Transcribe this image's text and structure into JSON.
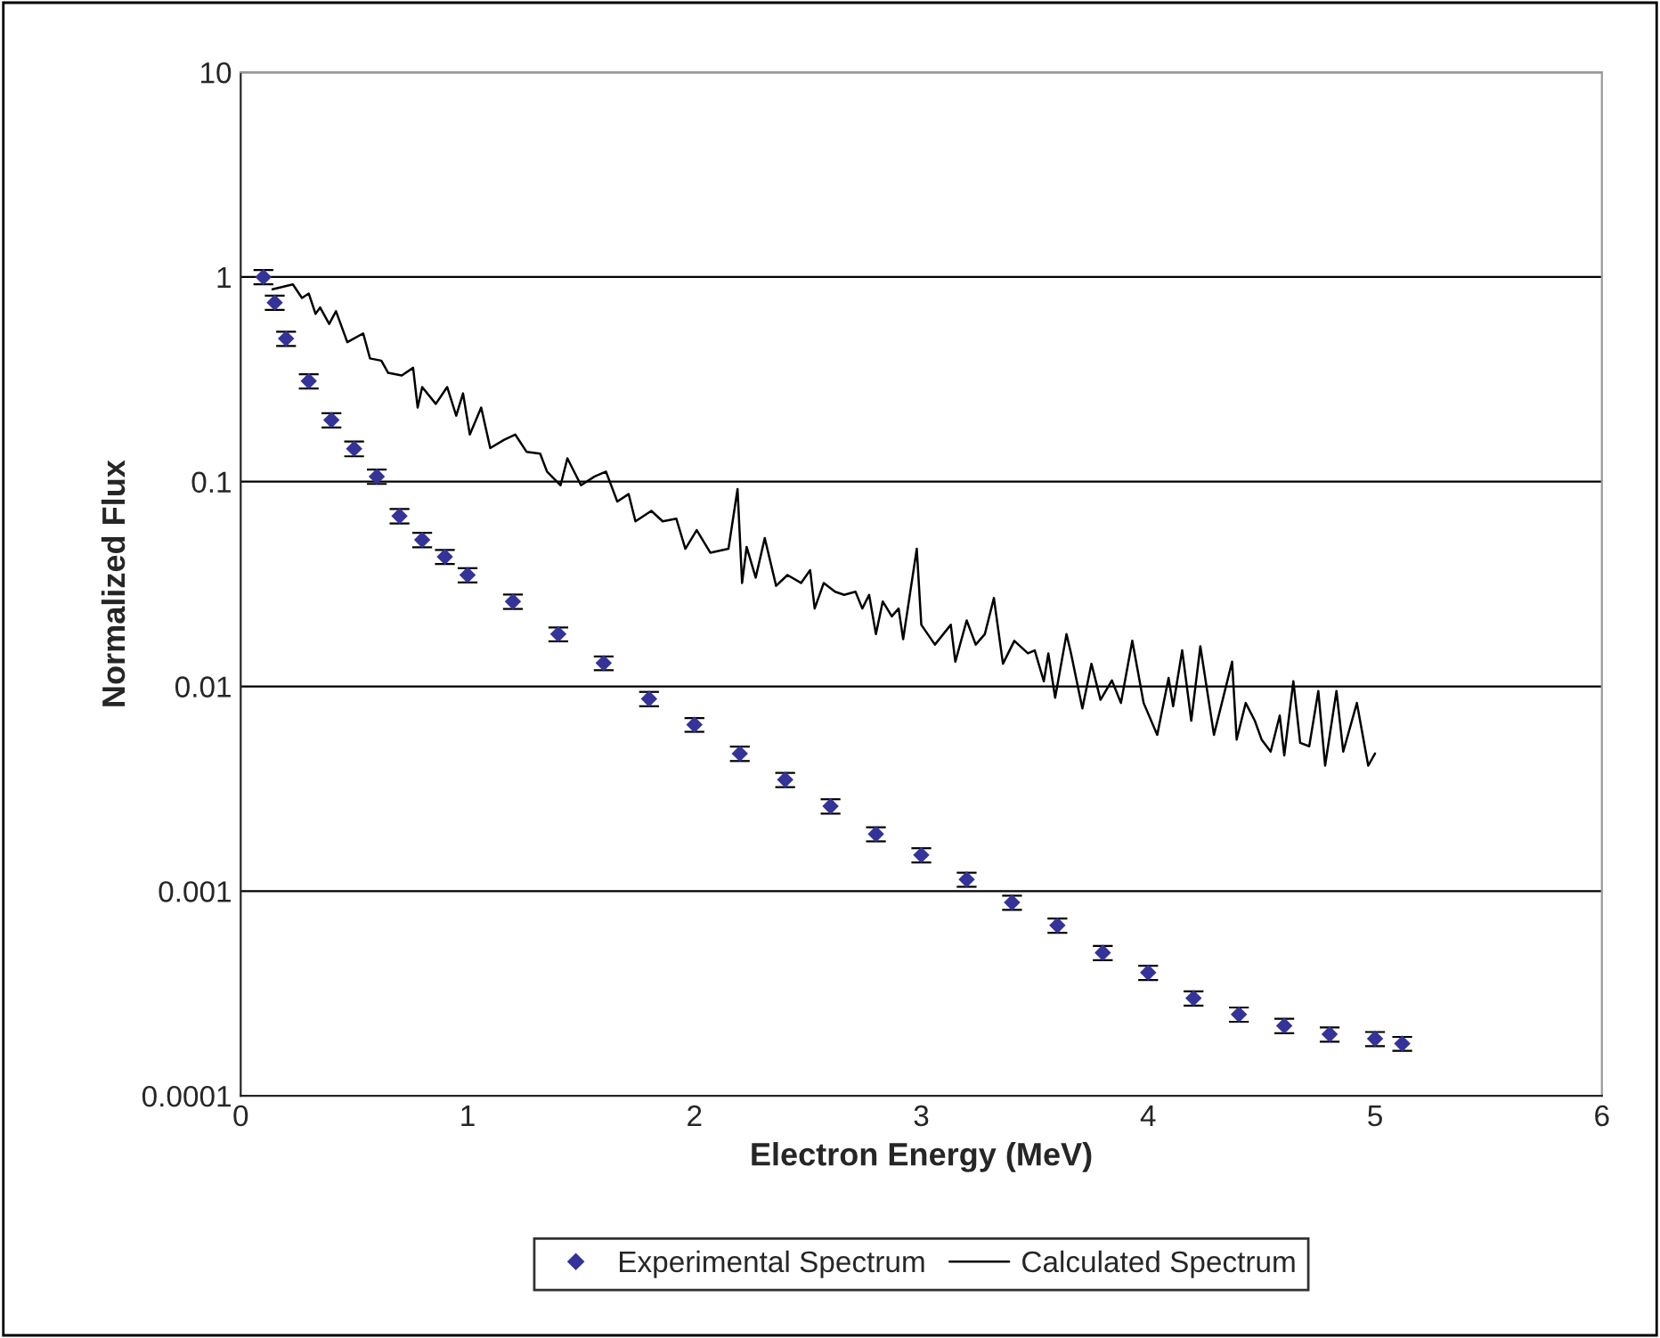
{
  "chart_data": {
    "type": "line",
    "xlabel": "Electron Energy (MeV)",
    "ylabel": "Normalized Flux",
    "log": "y",
    "xlim": [
      0,
      6
    ],
    "xticks": [
      0,
      1,
      2,
      3,
      4,
      5,
      6
    ],
    "ylim": [
      0.0001,
      10
    ],
    "yticks": [
      0.0001,
      0.001,
      0.01,
      0.1,
      1,
      10
    ],
    "grid": "y",
    "legend": "bottom",
    "series": [
      {
        "name": "Experimental Spectrum",
        "type": "scatter",
        "marker": "diamond",
        "color": "#333399",
        "x": [
          0.1,
          0.15,
          0.2,
          0.3,
          0.4,
          0.5,
          0.6,
          0.7,
          0.8,
          0.9,
          1.0,
          1.2,
          1.4,
          1.6,
          1.8,
          2.0,
          2.2,
          2.4,
          2.6,
          2.8,
          3.0,
          3.2,
          3.4,
          3.6,
          3.8,
          4.0,
          4.2,
          4.4,
          4.6,
          4.8,
          5.0,
          5.12
        ],
        "values": [
          1.0,
          0.75,
          0.5,
          0.31,
          0.2,
          0.145,
          0.106,
          0.068,
          0.052,
          0.043,
          0.035,
          0.026,
          0.018,
          0.013,
          0.0087,
          0.0065,
          0.0047,
          0.0035,
          0.0026,
          0.0019,
          0.0015,
          0.00114,
          0.00088,
          0.00068,
          0.0005,
          0.0004,
          0.0003,
          0.00025,
          0.00022,
          0.0002,
          0.00019,
          0.00018
        ],
        "errors": [
          0.08,
          0.06,
          0.04,
          0.025,
          0.016,
          0.012,
          0.0085,
          0.0055,
          0.0042,
          0.0034,
          0.0028,
          0.0021,
          0.0014,
          0.001,
          0.0007,
          0.0005,
          0.00038,
          0.00028,
          0.00021,
          0.00015,
          0.00012,
          9e-05,
          7e-05,
          5.4e-05,
          4e-05,
          3.2e-05,
          2.4e-05,
          2e-05,
          1.8e-05,
          1.6e-05,
          1.5e-05,
          1.4e-05
        ]
      },
      {
        "name": "Calculated Spectrum",
        "marker": "none",
        "line_style": "solid",
        "color": "#000000",
        "x": [
          0.14,
          0.23,
          0.27,
          0.3,
          0.33,
          0.35,
          0.39,
          0.42,
          0.47,
          0.54,
          0.57,
          0.62,
          0.65,
          0.71,
          0.76,
          0.78,
          0.8,
          0.86,
          0.91,
          0.95,
          0.98,
          1.01,
          1.06,
          1.1,
          1.16,
          1.21,
          1.26,
          1.32,
          1.35,
          1.41,
          1.44,
          1.5,
          1.56,
          1.61,
          1.66,
          1.71,
          1.74,
          1.81,
          1.86,
          1.92,
          1.96,
          2.01,
          2.07,
          2.15,
          2.19,
          2.21,
          2.23,
          2.27,
          2.31,
          2.36,
          2.41,
          2.47,
          2.51,
          2.53,
          2.57,
          2.62,
          2.66,
          2.71,
          2.74,
          2.77,
          2.8,
          2.83,
          2.87,
          2.9,
          2.92,
          2.98,
          3.0,
          3.06,
          3.13,
          3.15,
          3.2,
          3.24,
          3.28,
          3.32,
          3.36,
          3.41,
          3.47,
          3.5,
          3.54,
          3.56,
          3.59,
          3.64,
          3.66,
          3.71,
          3.75,
          3.79,
          3.84,
          3.88,
          3.93,
          3.98,
          4.04,
          4.09,
          4.11,
          4.15,
          4.19,
          4.23,
          4.29,
          4.37,
          4.39,
          4.43,
          4.47,
          4.5,
          4.54,
          4.58,
          4.6,
          4.64,
          4.67,
          4.71,
          4.75,
          4.78,
          4.83,
          4.86,
          4.92,
          4.97,
          5.0
        ],
        "values": [
          0.87,
          0.92,
          0.79,
          0.83,
          0.66,
          0.71,
          0.59,
          0.68,
          0.48,
          0.53,
          0.4,
          0.39,
          0.34,
          0.33,
          0.36,
          0.23,
          0.29,
          0.24,
          0.29,
          0.21,
          0.27,
          0.17,
          0.23,
          0.146,
          0.16,
          0.17,
          0.14,
          0.137,
          0.112,
          0.096,
          0.13,
          0.096,
          0.106,
          0.112,
          0.08,
          0.087,
          0.064,
          0.072,
          0.064,
          0.066,
          0.047,
          0.058,
          0.045,
          0.047,
          0.092,
          0.032,
          0.048,
          0.034,
          0.053,
          0.031,
          0.035,
          0.032,
          0.037,
          0.024,
          0.032,
          0.029,
          0.028,
          0.029,
          0.024,
          0.028,
          0.018,
          0.026,
          0.022,
          0.024,
          0.017,
          0.047,
          0.02,
          0.016,
          0.02,
          0.0132,
          0.021,
          0.016,
          0.018,
          0.027,
          0.0129,
          0.0167,
          0.0145,
          0.015,
          0.0106,
          0.0145,
          0.0088,
          0.018,
          0.0145,
          0.0078,
          0.0129,
          0.0086,
          0.0107,
          0.0083,
          0.0167,
          0.0083,
          0.0058,
          0.011,
          0.008,
          0.015,
          0.0068,
          0.0157,
          0.0058,
          0.0132,
          0.0055,
          0.0083,
          0.0068,
          0.0055,
          0.0048,
          0.0072,
          0.0046,
          0.0106,
          0.0053,
          0.0051,
          0.0095,
          0.0041,
          0.0095,
          0.0048,
          0.0083,
          0.0041,
          0.0047
        ]
      }
    ]
  }
}
